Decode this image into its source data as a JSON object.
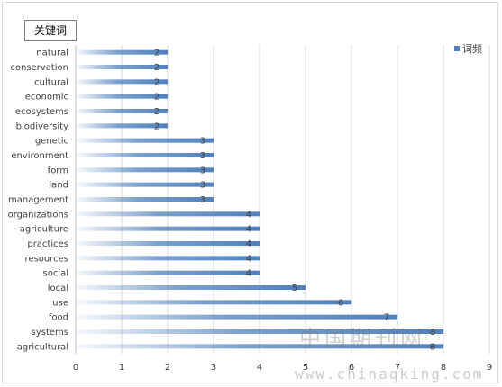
{
  "chart_data": {
    "type": "bar",
    "orientation": "horizontal",
    "title": "关键词",
    "categories": [
      "natural",
      "conservation",
      "cultural",
      "economic",
      "ecosystems",
      "biodiversity",
      "genetic",
      "environment",
      "form",
      "land",
      "management",
      "organizations",
      "agriculture",
      "practices",
      "resources",
      "social",
      "local",
      "use",
      "food",
      "systems",
      "agricultural"
    ],
    "series": [
      {
        "name": "词频",
        "values": [
          2,
          2,
          2,
          2,
          2,
          2,
          3,
          3,
          3,
          3,
          3,
          4,
          4,
          4,
          4,
          4,
          5,
          6,
          7,
          8,
          8
        ]
      }
    ],
    "xlim": [
      0,
      9
    ],
    "x_ticks": [
      "0",
      "1",
      "2",
      "3",
      "4",
      "5",
      "6",
      "7",
      "8",
      "9"
    ],
    "grid": "vertical",
    "legend": "top-right",
    "bar_color": "#4f81bd"
  },
  "watermark": {
    "cn": "中国期刊网",
    "url": "www.chinaqking.com"
  }
}
